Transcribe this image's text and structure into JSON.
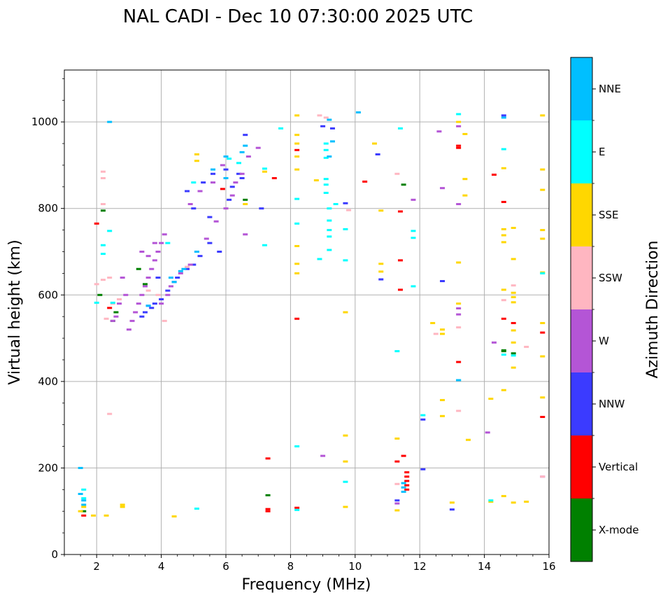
{
  "chart_data": {
    "type": "scatter",
    "title": "NAL CADI - Dec 10 07:30:00 2025 UTC",
    "xlabel": "Frequency (MHz)",
    "ylabel": "Virtual height (km)",
    "xlim": [
      1,
      16
    ],
    "ylim": [
      0,
      1120
    ],
    "xticks": [
      2,
      4,
      6,
      8,
      10,
      12,
      14,
      16
    ],
    "yticks": [
      0,
      200,
      400,
      600,
      800,
      1000
    ],
    "grid": true,
    "colorbar": {
      "label": "Azimuth Direction",
      "categories": [
        {
          "name": "X-mode",
          "color": "#008000"
        },
        {
          "name": "Vertical",
          "color": "#ff0000"
        },
        {
          "name": "NNW",
          "color": "#3b3bff"
        },
        {
          "name": "W",
          "color": "#b455d6"
        },
        {
          "name": "SSW",
          "color": "#ffb6c1"
        },
        {
          "name": "SSE",
          "color": "#ffd700"
        },
        {
          "name": "E",
          "color": "#00ffff"
        },
        {
          "name": "NNE",
          "color": "#00bfff"
        }
      ]
    },
    "series": [
      {
        "name": "X-mode",
        "points": [
          [
            2.2,
            795
          ],
          [
            2.1,
            600
          ],
          [
            3.5,
            625
          ],
          [
            2.5,
            540
          ],
          [
            6.6,
            820
          ],
          [
            11.5,
            855
          ],
          [
            14.6,
            470
          ],
          [
            14.9,
            465
          ],
          [
            14.6,
            472
          ],
          [
            7.3,
            137
          ],
          [
            1.6,
            100
          ],
          [
            3.3,
            660
          ],
          [
            2.6,
            560
          ]
        ]
      },
      {
        "name": "Vertical",
        "points": [
          [
            2.0,
            765
          ],
          [
            2.4,
            570
          ],
          [
            5.9,
            845
          ],
          [
            7.5,
            870
          ],
          [
            8.2,
            545
          ],
          [
            8.2,
            935
          ],
          [
            10.3,
            862
          ],
          [
            11.4,
            793
          ],
          [
            11.4,
            680
          ],
          [
            11.4,
            612
          ],
          [
            11.5,
            228
          ],
          [
            11.3,
            215
          ],
          [
            11.6,
            190
          ],
          [
            11.6,
            180
          ],
          [
            11.6,
            170
          ],
          [
            11.6,
            160
          ],
          [
            11.6,
            150
          ],
          [
            7.3,
            222
          ],
          [
            7.3,
            105
          ],
          [
            7.3,
            100
          ],
          [
            13.2,
            945
          ],
          [
            13.2,
            940
          ],
          [
            13.2,
            445
          ],
          [
            14.3,
            878
          ],
          [
            14.6,
            815
          ],
          [
            14.6,
            545
          ],
          [
            14.9,
            535
          ],
          [
            15.8,
            513
          ],
          [
            15.8,
            318
          ],
          [
            1.6,
            90
          ],
          [
            8.2,
            108
          ]
        ]
      },
      {
        "name": "NNW",
        "points": [
          [
            4.5,
            640
          ],
          [
            4.2,
            610
          ],
          [
            4.0,
            590
          ],
          [
            3.8,
            580
          ],
          [
            3.7,
            570
          ],
          [
            3.5,
            560
          ],
          [
            3.4,
            550
          ],
          [
            3.6,
            575
          ],
          [
            4.8,
            660
          ],
          [
            5.0,
            670
          ],
          [
            5.2,
            690
          ],
          [
            5.5,
            720
          ],
          [
            5.8,
            700
          ],
          [
            6.1,
            820
          ],
          [
            6.2,
            850
          ],
          [
            6.4,
            880
          ],
          [
            6.6,
            970
          ],
          [
            6.5,
            870
          ],
          [
            5.3,
            860
          ],
          [
            4.8,
            840
          ],
          [
            5.0,
            800
          ],
          [
            5.5,
            780
          ],
          [
            7.1,
            800
          ],
          [
            9.0,
            990
          ],
          [
            9.3,
            985
          ],
          [
            9.7,
            812
          ],
          [
            10.7,
            925
          ],
          [
            10.8,
            636
          ],
          [
            12.1,
            312
          ],
          [
            12.1,
            197
          ],
          [
            12.7,
            632
          ],
          [
            13.0,
            104
          ],
          [
            11.3,
            125
          ],
          [
            14.6,
            1015
          ],
          [
            3.9,
            640
          ],
          [
            4.4,
            630
          ],
          [
            5.6,
            880
          ],
          [
            6.0,
            890
          ]
        ]
      },
      {
        "name": "W",
        "points": [
          [
            3.0,
            520
          ],
          [
            3.1,
            540
          ],
          [
            3.2,
            560
          ],
          [
            3.3,
            580
          ],
          [
            3.4,
            600
          ],
          [
            3.5,
            620
          ],
          [
            3.6,
            640
          ],
          [
            3.7,
            660
          ],
          [
            3.8,
            680
          ],
          [
            3.9,
            700
          ],
          [
            4.0,
            720
          ],
          [
            4.1,
            740
          ],
          [
            4.2,
            600
          ],
          [
            4.0,
            580
          ],
          [
            4.3,
            620
          ],
          [
            4.6,
            650
          ],
          [
            4.9,
            670
          ],
          [
            5.1,
            700
          ],
          [
            5.4,
            730
          ],
          [
            5.7,
            770
          ],
          [
            6.0,
            800
          ],
          [
            6.2,
            830
          ],
          [
            6.3,
            860
          ],
          [
            6.5,
            880
          ],
          [
            6.7,
            920
          ],
          [
            7.0,
            940
          ],
          [
            5.9,
            900
          ],
          [
            5.6,
            860
          ],
          [
            5.2,
            840
          ],
          [
            4.9,
            810
          ],
          [
            3.4,
            700
          ],
          [
            3.6,
            690
          ],
          [
            3.8,
            720
          ],
          [
            2.9,
            600
          ],
          [
            2.7,
            580
          ],
          [
            2.6,
            550
          ],
          [
            2.5,
            540
          ],
          [
            6.6,
            740
          ],
          [
            2.8,
            640
          ],
          [
            9.0,
            228
          ],
          [
            11.8,
            820
          ],
          [
            12.6,
            978
          ],
          [
            12.7,
            847
          ],
          [
            13.2,
            990
          ],
          [
            13.2,
            569
          ],
          [
            13.2,
            555
          ],
          [
            13.2,
            810
          ],
          [
            14.1,
            282
          ],
          [
            14.3,
            490
          ],
          [
            15.8,
            180
          ],
          [
            11.3,
            118
          ]
        ]
      },
      {
        "name": "SSW",
        "points": [
          [
            2.2,
            885
          ],
          [
            2.2,
            870
          ],
          [
            2.2,
            810
          ],
          [
            2.0,
            625
          ],
          [
            2.2,
            635
          ],
          [
            2.4,
            325
          ],
          [
            2.5,
            580
          ],
          [
            2.3,
            545
          ],
          [
            2.7,
            590
          ],
          [
            3.6,
            610
          ],
          [
            3.9,
            600
          ],
          [
            4.1,
            540
          ],
          [
            8.9,
            1015
          ],
          [
            9.1,
            1010
          ],
          [
            9.8,
            796
          ],
          [
            11.3,
            880
          ],
          [
            11.3,
            163
          ],
          [
            12.5,
            510
          ],
          [
            13.2,
            525
          ],
          [
            13.2,
            332
          ],
          [
            14.6,
            588
          ],
          [
            14.9,
            622
          ],
          [
            15.3,
            480
          ],
          [
            15.8,
            180
          ],
          [
            2.4,
            640
          ],
          [
            4.8,
            665
          ]
        ]
      },
      {
        "name": "SSE",
        "points": [
          [
            1.5,
            100
          ],
          [
            1.6,
            110
          ],
          [
            1.9,
            90
          ],
          [
            2.3,
            90
          ],
          [
            2.8,
            115
          ],
          [
            2.8,
            110
          ],
          [
            4.4,
            88
          ],
          [
            5.1,
            925
          ],
          [
            5.1,
            910
          ],
          [
            6.6,
            810
          ],
          [
            7.2,
            885
          ],
          [
            8.2,
            1015
          ],
          [
            8.2,
            970
          ],
          [
            8.2,
            950
          ],
          [
            8.2,
            920
          ],
          [
            8.2,
            890
          ],
          [
            8.2,
            713
          ],
          [
            8.2,
            672
          ],
          [
            8.2,
            650
          ],
          [
            8.8,
            865
          ],
          [
            9.7,
            275
          ],
          [
            9.7,
            215
          ],
          [
            9.7,
            110
          ],
          [
            10.6,
            950
          ],
          [
            10.8,
            795
          ],
          [
            10.8,
            672
          ],
          [
            10.8,
            654
          ],
          [
            11.3,
            268
          ],
          [
            11.3,
            102
          ],
          [
            12.4,
            535
          ],
          [
            12.7,
            520
          ],
          [
            12.7,
            510
          ],
          [
            12.7,
            357
          ],
          [
            12.7,
            320
          ],
          [
            13.0,
            120
          ],
          [
            13.2,
            1000
          ],
          [
            13.2,
            580
          ],
          [
            13.2,
            675
          ],
          [
            13.4,
            972
          ],
          [
            13.4,
            868
          ],
          [
            13.4,
            830
          ],
          [
            13.5,
            265
          ],
          [
            14.2,
            360
          ],
          [
            14.2,
            122
          ],
          [
            14.6,
            893
          ],
          [
            14.6,
            752
          ],
          [
            14.6,
            738
          ],
          [
            14.6,
            722
          ],
          [
            14.6,
            612
          ],
          [
            14.6,
            380
          ],
          [
            14.6,
            135
          ],
          [
            14.9,
            755
          ],
          [
            14.9,
            683
          ],
          [
            14.9,
            605
          ],
          [
            14.9,
            595
          ],
          [
            14.9,
            583
          ],
          [
            14.9,
            518
          ],
          [
            14.9,
            490
          ],
          [
            14.9,
            432
          ],
          [
            14.9,
            120
          ],
          [
            15.3,
            122
          ],
          [
            15.8,
            1015
          ],
          [
            15.8,
            890
          ],
          [
            15.8,
            843
          ],
          [
            15.8,
            750
          ],
          [
            15.8,
            730
          ],
          [
            15.8,
            652
          ],
          [
            15.8,
            535
          ],
          [
            15.8,
            458
          ],
          [
            15.8,
            363
          ],
          [
            9.7,
            560
          ]
        ]
      },
      {
        "name": "E",
        "points": [
          [
            1.6,
            130
          ],
          [
            1.6,
            150
          ],
          [
            2.2,
            695
          ],
          [
            2.2,
            715
          ],
          [
            2.0,
            582
          ],
          [
            2.5,
            582
          ],
          [
            2.4,
            748
          ],
          [
            6.1,
            915
          ],
          [
            6.4,
            905
          ],
          [
            7.2,
            715
          ],
          [
            7.2,
            892
          ],
          [
            7.7,
            985
          ],
          [
            8.2,
            822
          ],
          [
            8.2,
            765
          ],
          [
            8.2,
            250
          ],
          [
            8.2,
            103
          ],
          [
            8.9,
            683
          ],
          [
            9.1,
            950
          ],
          [
            9.1,
            935
          ],
          [
            9.1,
            917
          ],
          [
            9.1,
            868
          ],
          [
            9.1,
            855
          ],
          [
            9.1,
            836
          ],
          [
            9.2,
            800
          ],
          [
            9.2,
            772
          ],
          [
            9.2,
            750
          ],
          [
            9.2,
            735
          ],
          [
            9.2,
            704
          ],
          [
            9.4,
            810
          ],
          [
            9.7,
            752
          ],
          [
            9.7,
            680
          ],
          [
            9.7,
            168
          ],
          [
            11.3,
            470
          ],
          [
            11.4,
            985
          ],
          [
            11.8,
            748
          ],
          [
            11.8,
            732
          ],
          [
            11.8,
            620
          ],
          [
            12.1,
            322
          ],
          [
            13.2,
            1018
          ],
          [
            13.2,
            403
          ],
          [
            14.2,
            125
          ],
          [
            14.6,
            937
          ],
          [
            14.6,
            462
          ],
          [
            14.9,
            460
          ],
          [
            15.8,
            650
          ],
          [
            4.2,
            720
          ],
          [
            5.1,
            106
          ],
          [
            5.0,
            860
          ]
        ]
      },
      {
        "name": "NNE",
        "points": [
          [
            1.5,
            200
          ],
          [
            1.5,
            140
          ],
          [
            1.6,
            115
          ],
          [
            2.4,
            1000
          ],
          [
            4.3,
            640
          ],
          [
            4.4,
            630
          ],
          [
            4.6,
            655
          ],
          [
            4.7,
            660
          ],
          [
            5.1,
            700
          ],
          [
            5.6,
            890
          ],
          [
            6.0,
            920
          ],
          [
            6.5,
            930
          ],
          [
            6.6,
            945
          ],
          [
            9.2,
            1005
          ],
          [
            9.3,
            955
          ],
          [
            9.2,
            920
          ],
          [
            10.1,
            1022
          ],
          [
            11.5,
            165
          ],
          [
            11.5,
            155
          ],
          [
            11.5,
            145
          ],
          [
            13.2,
            403
          ],
          [
            14.6,
            1010
          ],
          [
            1.6,
            125
          ],
          [
            6.0,
            870
          ],
          [
            3.6,
            575
          ]
        ]
      }
    ]
  }
}
